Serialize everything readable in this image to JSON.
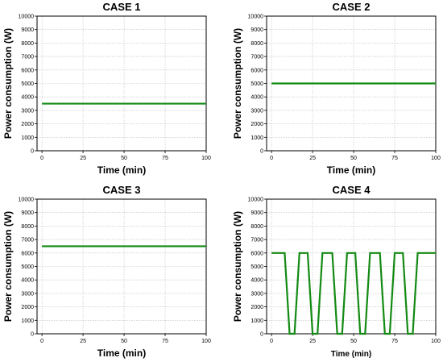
{
  "chart_data": [
    {
      "type": "line",
      "title": "CASE 1",
      "xlabel": "Time (min)",
      "ylabel": "Power consumption (W)",
      "xlim": [
        -3,
        100
      ],
      "ylim": [
        0,
        10000
      ],
      "xticks": [
        0,
        25,
        50,
        75,
        100
      ],
      "yticks": [
        0,
        1000,
        2000,
        3000,
        4000,
        5000,
        6000,
        7000,
        8000,
        9000,
        10000
      ],
      "grid": true,
      "color": "#138a13",
      "series": [
        {
          "x": [
            0,
            100
          ],
          "y": [
            3500,
            3500
          ]
        }
      ]
    },
    {
      "type": "line",
      "title": "CASE 2",
      "xlabel": "Time (min)",
      "ylabel": "Power consumption (W)",
      "xlim": [
        -3,
        100
      ],
      "ylim": [
        0,
        10000
      ],
      "xticks": [
        0,
        25,
        50,
        75,
        100
      ],
      "yticks": [
        0,
        1000,
        2000,
        3000,
        4000,
        5000,
        6000,
        7000,
        8000,
        9000,
        10000
      ],
      "grid": true,
      "color": "#138a13",
      "series": [
        {
          "x": [
            0,
            100
          ],
          "y": [
            5000,
            5000
          ]
        }
      ]
    },
    {
      "type": "line",
      "title": "CASE 3",
      "xlabel": "Time (min)",
      "ylabel": "Power consumption (W)",
      "xlim": [
        -3,
        100
      ],
      "ylim": [
        0,
        10000
      ],
      "xticks": [
        0,
        25,
        50,
        75,
        100
      ],
      "yticks": [
        0,
        1000,
        2000,
        3000,
        4000,
        5000,
        6000,
        7000,
        8000,
        9000,
        10000
      ],
      "grid": true,
      "color": "#138a13",
      "series": [
        {
          "x": [
            0,
            100
          ],
          "y": [
            6500,
            6500
          ]
        }
      ]
    },
    {
      "type": "line",
      "title": "CASE 4",
      "xlabel": "Time (min)",
      "ylabel": "Power consumption (W)",
      "xlim": [
        -3,
        100
      ],
      "ylim": [
        0,
        10000
      ],
      "xticks": [
        0,
        25,
        50,
        75,
        100
      ],
      "yticks": [
        0,
        1000,
        2000,
        3000,
        4000,
        5000,
        6000,
        7000,
        8000,
        9000,
        10000
      ],
      "grid": true,
      "color": "#138a13",
      "series": [
        {
          "x": [
            0,
            8,
            11,
            14,
            17,
            22,
            25,
            28,
            31,
            37,
            40,
            43,
            46,
            51,
            54,
            57,
            60,
            66,
            69,
            72,
            75,
            80,
            83,
            86,
            89,
            94,
            97,
            100
          ],
          "y": [
            6000,
            6000,
            0,
            0,
            6000,
            6000,
            0,
            0,
            6000,
            6000,
            0,
            0,
            6000,
            6000,
            0,
            0,
            6000,
            6000,
            0,
            0,
            6000,
            6000,
            0,
            0,
            6000,
            6000,
            6000,
            6000
          ]
        }
      ]
    }
  ]
}
